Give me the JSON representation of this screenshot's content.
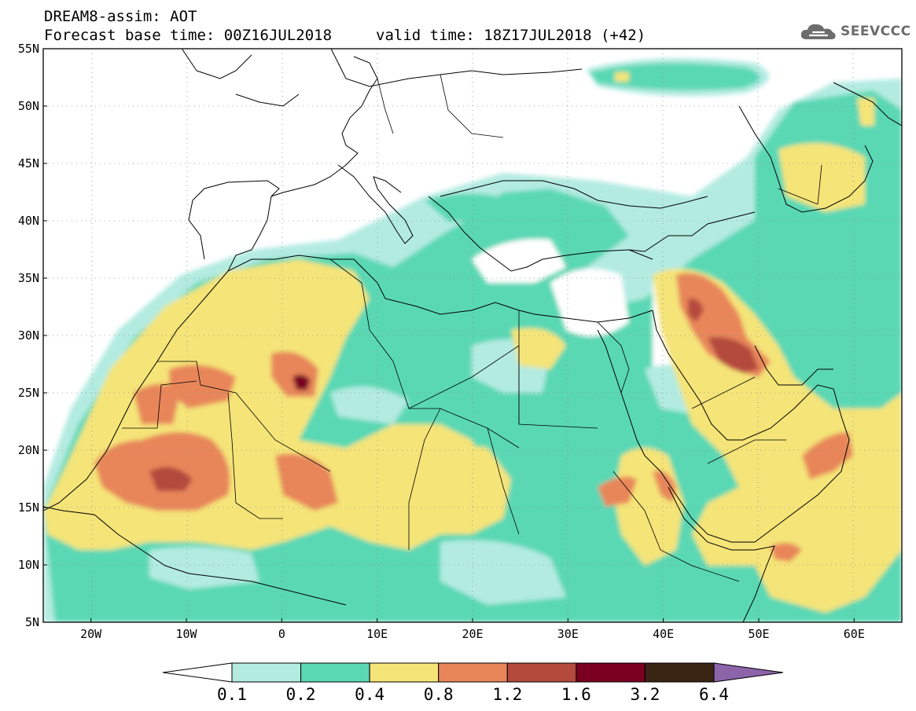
{
  "header": {
    "title": "DREAM8-assim: AOT",
    "base_time": "Forecast base time: 00Z16JUL2018",
    "valid_time": "valid time: 18Z17JUL2018 (+42)"
  },
  "logo": {
    "text": "SEEVCCC",
    "icon": "cloud-icon",
    "color": "#6c6c6c"
  },
  "map": {
    "lon_range": [
      -25,
      65
    ],
    "lat_range": [
      5,
      55
    ],
    "lat_labels": [
      "55N",
      "50N",
      "45N",
      "40N",
      "35N",
      "30N",
      "25N",
      "20N",
      "15N",
      "10N",
      "5N"
    ],
    "lon_labels": [
      "20W",
      "10W",
      "0",
      "10E",
      "20E",
      "30E",
      "40E",
      "50E",
      "60E"
    ],
    "gridlines": "dotted"
  },
  "colorbar": {
    "levels": [
      "0.1",
      "0.2",
      "0.4",
      "0.8",
      "1.2",
      "1.6",
      "3.2",
      "6.4"
    ],
    "colors": [
      "#ffffff",
      "#b3ebe1",
      "#5ad8b4",
      "#f5e478",
      "#e8865a",
      "#b44a3c",
      "#7a0022",
      "#3a2414",
      "#8c64aa"
    ]
  }
}
